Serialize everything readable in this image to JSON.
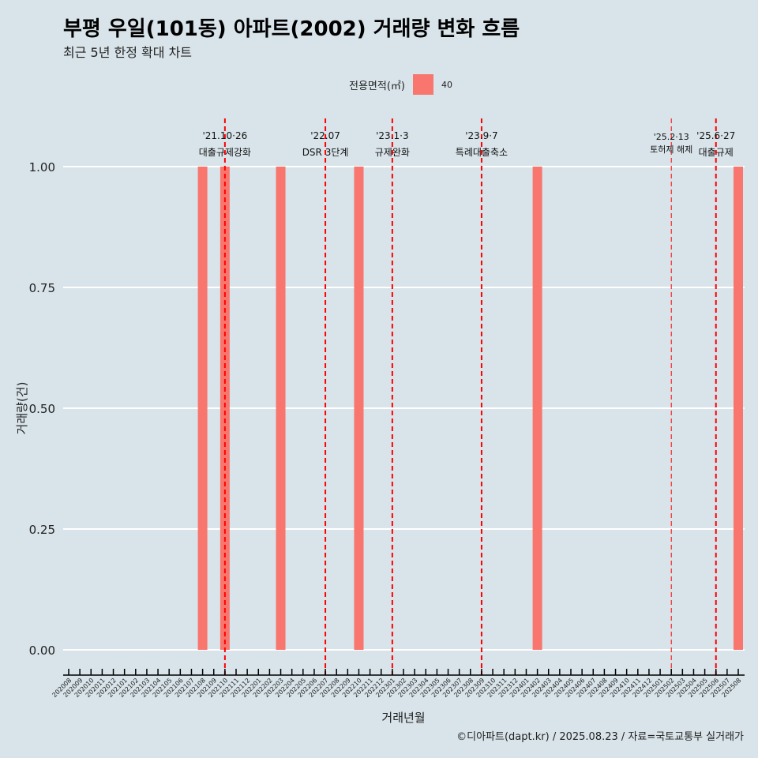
{
  "title": "부평 우일(101동) 아파트(2002) 거래량 변화 흐름",
  "subtitle": "최근 5년 한정 확대 차트",
  "legend": {
    "title": "전용면적(㎡)",
    "items": [
      {
        "label": "40",
        "color": "#f8766d"
      }
    ]
  },
  "caption": "©디아파트(dapt.kr) / 2025.08.23 / 자료=국토교통부 실거래가",
  "chart_data": {
    "type": "bar",
    "xlabel": "거래년월",
    "ylabel": "거래량(건)",
    "ylim": [
      0,
      1
    ],
    "yticks": [
      "0.00",
      "0.25",
      "0.50",
      "0.75",
      "1.00"
    ],
    "categories": [
      "202008",
      "202009",
      "202010",
      "202011",
      "202012",
      "202101",
      "202102",
      "202103",
      "202104",
      "202105",
      "202106",
      "202107",
      "202108",
      "202109",
      "202110",
      "202111",
      "202112",
      "202201",
      "202202",
      "202203",
      "202204",
      "202205",
      "202206",
      "202207",
      "202208",
      "202209",
      "202210",
      "202211",
      "202212",
      "202301",
      "202302",
      "202303",
      "202304",
      "202305",
      "202306",
      "202307",
      "202308",
      "202309",
      "202310",
      "202311",
      "202312",
      "202401",
      "202402",
      "202403",
      "202404",
      "202405",
      "202406",
      "202407",
      "202408",
      "202409",
      "202410",
      "202411",
      "202412",
      "202501",
      "202502",
      "202503",
      "202504",
      "202505",
      "202506",
      "202507",
      "202508"
    ],
    "series": [
      {
        "name": "40",
        "color": "#f8766d",
        "points": [
          {
            "x": "202108",
            "y": 1
          },
          {
            "x": "202110",
            "y": 1
          },
          {
            "x": "202203",
            "y": 1
          },
          {
            "x": "202210",
            "y": 1
          },
          {
            "x": "202402",
            "y": 1
          },
          {
            "x": "202508",
            "y": 1
          }
        ]
      }
    ],
    "annotations": [
      {
        "x": "202110",
        "date": "'21.10·26",
        "label": "대출규제강화"
      },
      {
        "x": "202207",
        "date": "'22.07",
        "label": "DSR 3단계"
      },
      {
        "x": "202301",
        "date": "'23.1·3",
        "label": "규제완화"
      },
      {
        "x": "202309",
        "date": "'23.9·7",
        "label": "특례대출축소"
      },
      {
        "x": "202502",
        "date": "'25.2·13",
        "label": "토허제 해제",
        "thin": true
      },
      {
        "x": "202506",
        "date": "'25.6·27",
        "label": "대출규제"
      }
    ]
  }
}
